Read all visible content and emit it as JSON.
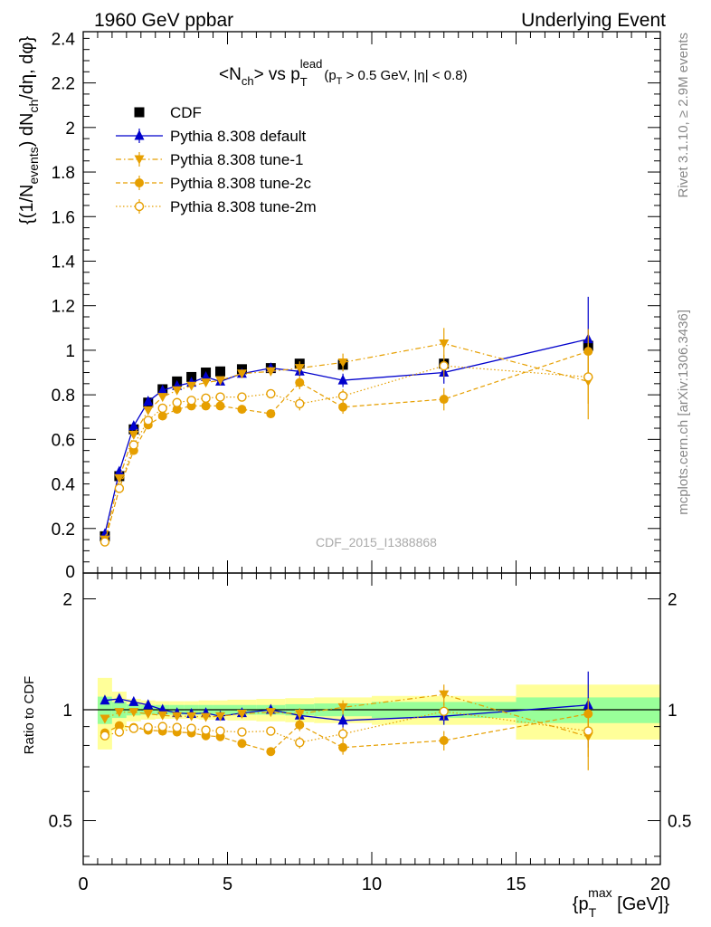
{
  "header": {
    "left": "1960 GeV ppbar",
    "right": "Underlying Event"
  },
  "side_labels": {
    "rivet": "Rivet 3.1.10, ≥ 2.9M events",
    "mcplots": "mcplots.cern.ch [arXiv:1306.3436]"
  },
  "colors": {
    "cdf": "#000000",
    "default": "#0000cc",
    "tunes": "#e69f00",
    "band_inner": "#99ff99",
    "band_outer": "#ffff99"
  },
  "chart_data": [
    {
      "type": "scatter",
      "panel": "main",
      "title_parts": {
        "a": "<N",
        "a_sub": "ch",
        "b": "> vs p",
        "b_sub": "T",
        "b_sup": "lead",
        "c": "(p",
        "c_sub": "T",
        "d": " > 0.5 GeV, |η| < 0.8)"
      },
      "ylabel_parts": {
        "a": "{(1/N",
        "a_sub": "events",
        "b": ") dN",
        "b_sub": "ch",
        "c": "/dη, dφ}"
      },
      "watermark": "CDF_2015_I1388868",
      "xlim": [
        0,
        20
      ],
      "ylim": [
        0,
        2.43
      ],
      "yticks": [
        "0.2",
        "0.4",
        "0.6",
        "0.8",
        "1",
        "1.2",
        "1.4",
        "1.6",
        "1.8",
        "2",
        "2.2",
        "2.4"
      ],
      "ytick_values": [
        0.2,
        0.4,
        0.6,
        0.8,
        1.0,
        1.2,
        1.4,
        1.6,
        1.8,
        2.0,
        2.2,
        2.4
      ],
      "y_bottom_label": "0",
      "legend": {
        "placement": "top-left",
        "entries": [
          "CDF",
          "Pythia 8.308 default",
          "Pythia 8.308 tune-1",
          "Pythia 8.308 tune-2c",
          "Pythia 8.308 tune-2m"
        ]
      },
      "x": [
        0.75,
        1.25,
        1.75,
        2.25,
        2.75,
        3.25,
        3.75,
        4.25,
        4.75,
        5.5,
        6.5,
        7.5,
        9.0,
        12.5,
        17.5
      ],
      "series": [
        {
          "name": "CDF",
          "marker": "square",
          "values": [
            0.165,
            0.435,
            0.645,
            0.765,
            0.825,
            0.86,
            0.88,
            0.9,
            0.905,
            0.915,
            0.92,
            0.94,
            0.935,
            0.94,
            1.02
          ]
        },
        {
          "name": "Pythia 8.308 default",
          "marker": "triangle-up",
          "values": [
            0.175,
            0.455,
            0.66,
            0.77,
            0.82,
            0.84,
            0.855,
            0.88,
            0.86,
            0.895,
            0.92,
            0.905,
            0.865,
            0.9,
            1.05
          ],
          "err": [
            0.01,
            0.01,
            0.01,
            0.01,
            0.01,
            0.01,
            0.01,
            0.01,
            0.01,
            0.012,
            0.015,
            0.02,
            0.03,
            0.05,
            0.19
          ]
        },
        {
          "name": "Pythia 8.308 tune-1",
          "marker": "triangle-down",
          "values": [
            0.15,
            0.425,
            0.62,
            0.73,
            0.79,
            0.82,
            0.84,
            0.855,
            0.865,
            0.895,
            0.905,
            0.92,
            0.945,
            1.03,
            0.86
          ],
          "err": [
            0.01,
            0.01,
            0.01,
            0.01,
            0.01,
            0.01,
            0.01,
            0.01,
            0.01,
            0.012,
            0.02,
            0.03,
            0.04,
            0.07,
            0.17
          ]
        },
        {
          "name": "Pythia 8.308 tune-2c",
          "marker": "circle",
          "values": [
            0.14,
            0.38,
            0.55,
            0.665,
            0.705,
            0.735,
            0.75,
            0.75,
            0.75,
            0.735,
            0.715,
            0.855,
            0.745,
            0.78,
            0.995
          ],
          "err": [
            0.01,
            0.01,
            0.01,
            0.01,
            0.01,
            0.01,
            0.01,
            0.01,
            0.01,
            0.012,
            0.02,
            0.03,
            0.03,
            0.05,
            0.1
          ]
        },
        {
          "name": "Pythia 8.308 tune-2m",
          "marker": "circle-open",
          "values": [
            0.14,
            0.38,
            0.575,
            0.685,
            0.74,
            0.765,
            0.775,
            0.785,
            0.79,
            0.79,
            0.805,
            0.76,
            0.795,
            0.93,
            0.88
          ],
          "err": [
            0.01,
            0.01,
            0.01,
            0.01,
            0.01,
            0.01,
            0.01,
            0.01,
            0.01,
            0.012,
            0.02,
            0.03,
            0.03,
            0.05,
            0.12
          ]
        }
      ]
    },
    {
      "type": "scatter",
      "panel": "ratio",
      "ylabel": "Ratio to CDF",
      "xlabel_parts": {
        "a": "{p",
        "sub": "T",
        "sup": "max",
        "b": " [GeV]}"
      },
      "xlim": [
        0,
        20
      ],
      "ylim": [
        0.38,
        2.35
      ],
      "yscale": "log",
      "yticks": [
        "0.5",
        "1",
        "2"
      ],
      "ytick_values": [
        0.5,
        1,
        2
      ],
      "xticks": [
        "0",
        "5",
        "10",
        "15",
        "20"
      ],
      "xtick_values": [
        0,
        5,
        10,
        15,
        20
      ],
      "bands": {
        "edges": [
          0.5,
          1.0,
          1.5,
          2.0,
          2.5,
          3.0,
          3.5,
          4.0,
          4.5,
          5.0,
          6.0,
          7.0,
          8.0,
          10.0,
          15.0,
          20.0
        ],
        "inner": [
          0.085,
          0.05,
          0.035,
          0.03,
          0.03,
          0.03,
          0.03,
          0.03,
          0.03,
          0.03,
          0.03,
          0.035,
          0.04,
          0.05,
          0.08
        ],
        "outer": [
          0.22,
          0.12,
          0.07,
          0.06,
          0.055,
          0.055,
          0.055,
          0.06,
          0.06,
          0.065,
          0.07,
          0.075,
          0.08,
          0.09,
          0.17
        ]
      },
      "x": [
        0.75,
        1.25,
        1.75,
        2.25,
        2.75,
        3.25,
        3.75,
        4.25,
        4.75,
        5.5,
        6.5,
        7.5,
        9.0,
        12.5,
        17.5
      ],
      "series": [
        {
          "name": "Pythia 8.308 default",
          "marker": "triangle-up",
          "values": [
            1.06,
            1.07,
            1.05,
            1.03,
            1.0,
            0.98,
            0.975,
            0.98,
            0.96,
            0.98,
            1.0,
            0.965,
            0.935,
            0.96,
            1.03
          ],
          "err": [
            0.01,
            0.01,
            0.01,
            0.01,
            0.01,
            0.01,
            0.01,
            0.01,
            0.01,
            0.01,
            0.02,
            0.03,
            0.04,
            0.05,
            0.24
          ]
        },
        {
          "name": "Pythia 8.308 tune-1",
          "marker": "triangle-down",
          "values": [
            0.945,
            0.985,
            0.985,
            0.975,
            0.965,
            0.96,
            0.96,
            0.955,
            0.96,
            0.975,
            0.985,
            0.975,
            1.015,
            1.1,
            0.845
          ],
          "err": [
            0.01,
            0.01,
            0.01,
            0.01,
            0.01,
            0.01,
            0.01,
            0.01,
            0.01,
            0.01,
            0.02,
            0.035,
            0.045,
            0.07,
            0.16
          ]
        },
        {
          "name": "Pythia 8.308 tune-2c",
          "marker": "circle",
          "values": [
            0.865,
            0.905,
            0.895,
            0.88,
            0.875,
            0.87,
            0.865,
            0.85,
            0.845,
            0.81,
            0.77,
            0.91,
            0.79,
            0.825,
            0.975
          ],
          "err": [
            0.01,
            0.01,
            0.01,
            0.01,
            0.01,
            0.01,
            0.01,
            0.01,
            0.01,
            0.01,
            0.02,
            0.035,
            0.035,
            0.05,
            0.1
          ]
        },
        {
          "name": "Pythia 8.308 tune-2m",
          "marker": "circle-open",
          "values": [
            0.85,
            0.87,
            0.89,
            0.895,
            0.9,
            0.895,
            0.89,
            0.88,
            0.875,
            0.87,
            0.875,
            0.815,
            0.86,
            0.99,
            0.875
          ],
          "err": [
            0.01,
            0.01,
            0.01,
            0.01,
            0.01,
            0.01,
            0.01,
            0.01,
            0.01,
            0.01,
            0.02,
            0.03,
            0.035,
            0.05,
            0.13
          ]
        }
      ]
    }
  ]
}
